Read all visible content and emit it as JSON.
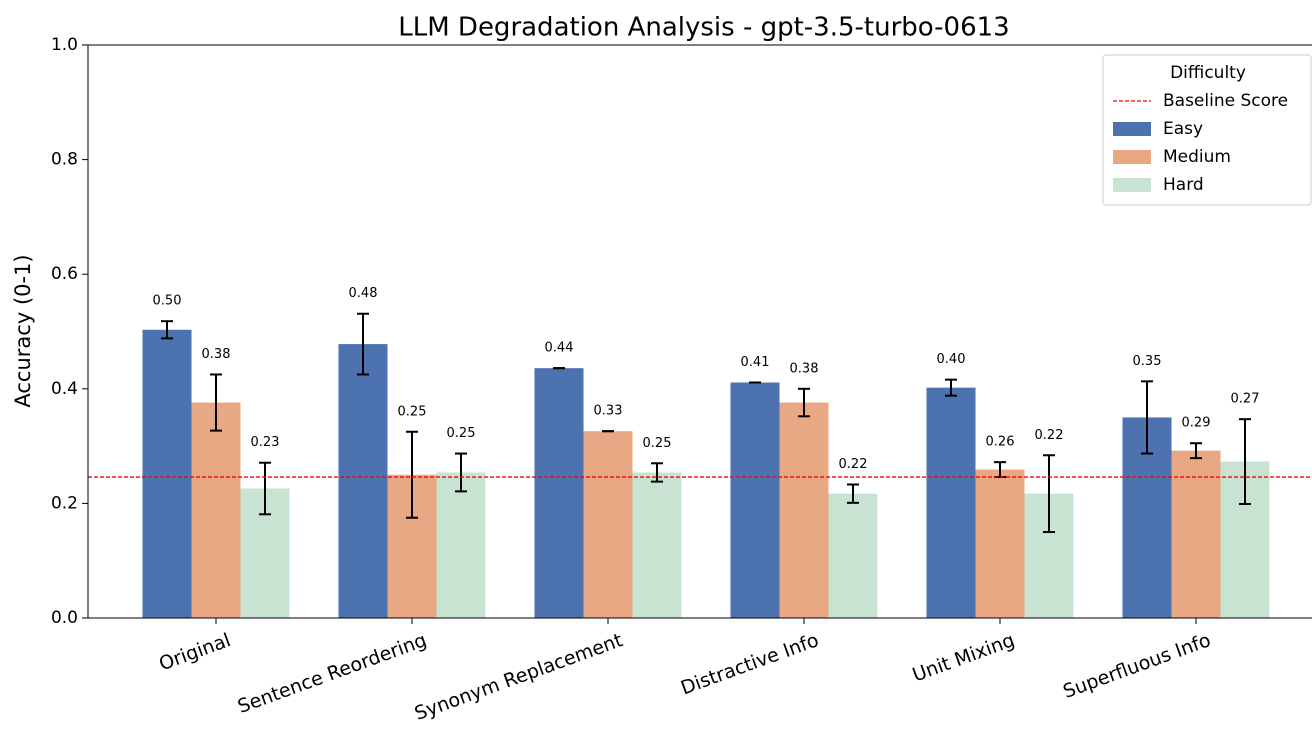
{
  "chart_data": {
    "type": "bar",
    "title": "LLM Degradation Analysis - gpt-3.5-turbo-0613",
    "y_label": "Accuracy (0-1)",
    "categories": [
      "Original",
      "Sentence Reordering",
      "Synonym Replacement",
      "Distractive Info",
      "Unit Mixing",
      "Superfluous Info"
    ],
    "series": [
      {
        "name": "Easy",
        "color": "#4c72b0",
        "values": [
          0.503,
          0.478,
          0.436,
          0.411,
          0.402,
          0.35
        ],
        "errors": [
          0.015,
          0.053,
          0.0,
          0.0,
          0.014,
          0.063
        ],
        "value_labels": [
          "0.50",
          "0.48",
          "0.44",
          "0.41",
          "0.40",
          "0.35"
        ]
      },
      {
        "name": "Medium",
        "color": "#e8a884",
        "values": [
          0.376,
          0.25,
          0.326,
          0.376,
          0.259,
          0.292
        ],
        "errors": [
          0.049,
          0.075,
          0.0,
          0.024,
          0.013,
          0.013
        ],
        "value_labels": [
          "0.38",
          "0.25",
          "0.33",
          "0.38",
          "0.26",
          "0.29"
        ]
      },
      {
        "name": "Hard",
        "color": "#c9e3d2",
        "values": [
          0.226,
          0.254,
          0.254,
          0.217,
          0.217,
          0.273
        ],
        "errors": [
          0.045,
          0.033,
          0.016,
          0.016,
          0.067,
          0.074
        ],
        "value_labels": [
          "0.23",
          "0.25",
          "0.25",
          "0.22",
          "0.22",
          "0.27"
        ]
      }
    ],
    "baseline": {
      "name": "Baseline Score",
      "value": 0.246,
      "color": "#ff0000"
    },
    "legend_title": "Difficulty",
    "legend": "upper right",
    "ylim": [
      0,
      1
    ],
    "yticks": [
      {
        "value": 0,
        "label": "0.0"
      },
      {
        "value": 0.2,
        "label": "0.2"
      },
      {
        "value": 0.4,
        "label": "0.4"
      },
      {
        "value": 0.6,
        "label": "0.6"
      },
      {
        "value": 0.8,
        "label": "0.8"
      },
      {
        "value": 1,
        "label": "1.0"
      }
    ]
  }
}
